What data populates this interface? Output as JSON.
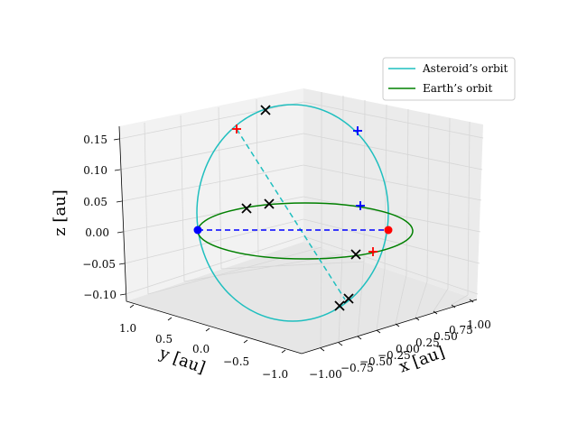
{
  "chart_data": {
    "type": "3d-line",
    "x_axis": {
      "label": "x [au]",
      "ticks": [
        "−1.00",
        "−0.75",
        "−0.50",
        "−0.25",
        "0.00",
        "0.25",
        "0.50",
        "0.75",
        "1.00"
      ]
    },
    "y_axis": {
      "label": "y [au]",
      "ticks": [
        "1.0",
        "0.5",
        "0.0",
        "−0.5",
        "−1.0"
      ]
    },
    "z_axis": {
      "label": "z [au]",
      "ticks": [
        "0.15",
        "0.10",
        "0.05",
        "0.00",
        "−0.05",
        "−0.10"
      ]
    },
    "legend": {
      "position": "top-right",
      "entries": [
        {
          "label": "Asteroid’s orbit",
          "color": "#1fbfbf"
        },
        {
          "label": "Earth’s orbit",
          "color": "#008000"
        }
      ]
    },
    "colors": {
      "asteroid": "#1fbfbf",
      "earth": "#008000",
      "blue": "#0000ff",
      "red": "#ff0000",
      "black": "#000000"
    }
  }
}
